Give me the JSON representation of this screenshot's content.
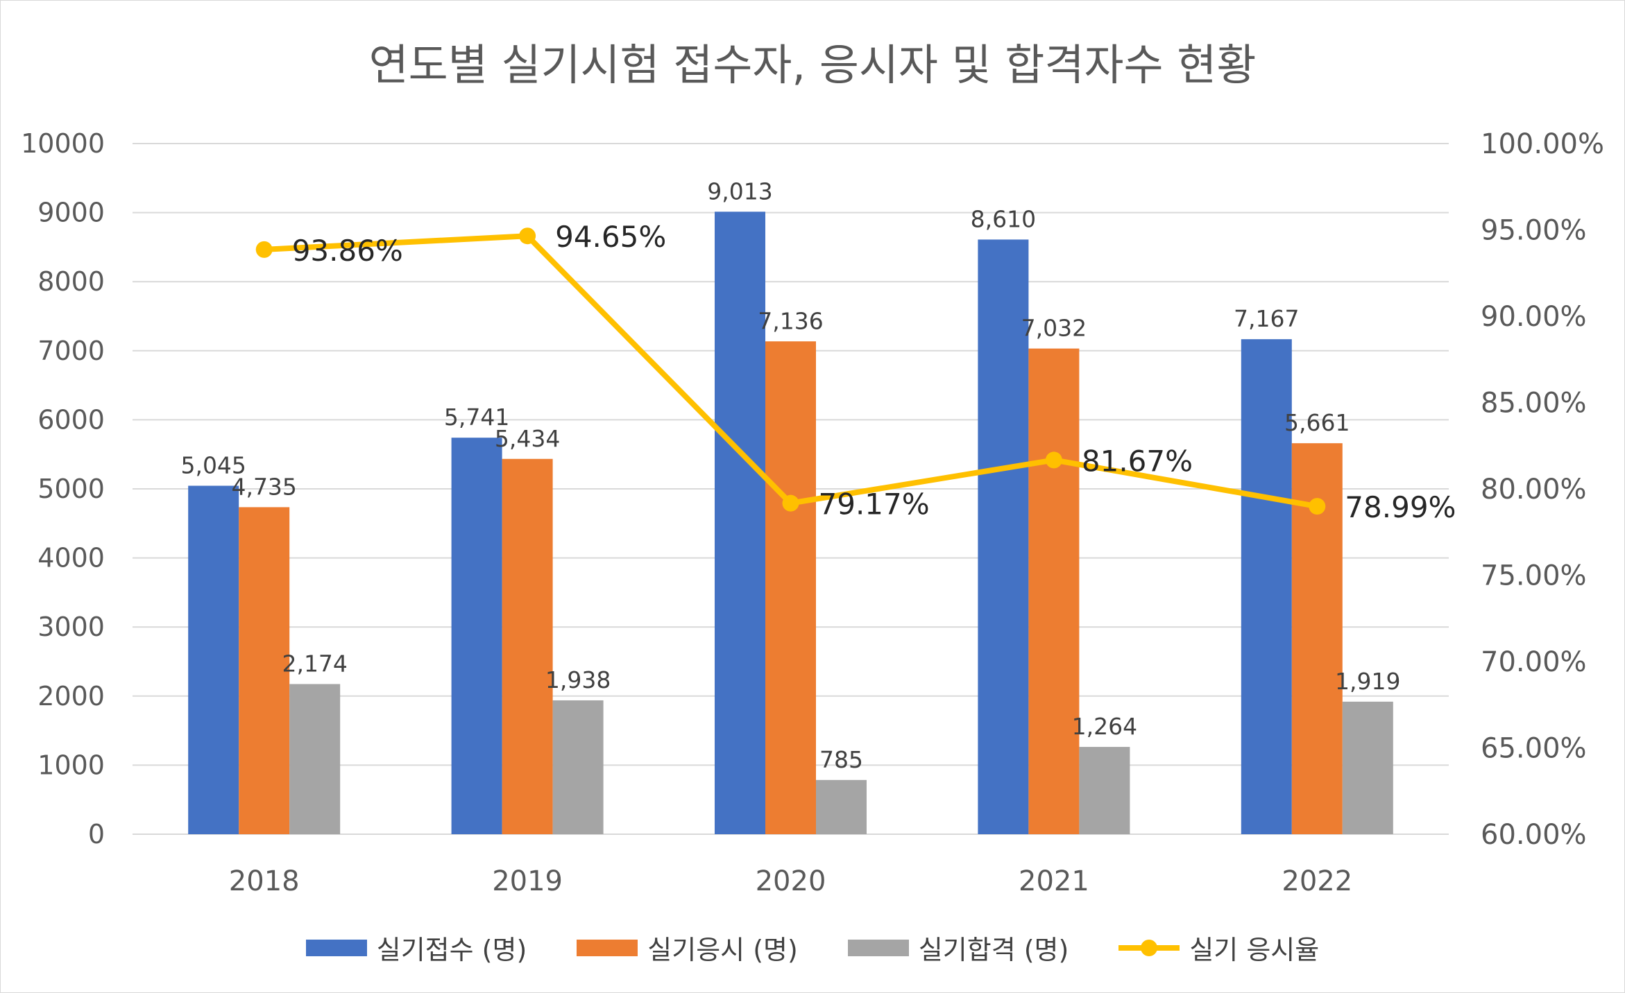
{
  "chart_data": {
    "type": "bar",
    "title": "연도별 실기시험 접수자, 응시자 및 합격자수 현황",
    "categories": [
      "2018",
      "2019",
      "2020",
      "2021",
      "2022"
    ],
    "series": [
      {
        "name": "실기접수 (명)",
        "type": "bar",
        "axis": "left",
        "color": "#4472C4",
        "values": [
          5045,
          5741,
          9013,
          8610,
          7167
        ],
        "labels": [
          "5,045",
          "5,741",
          "9,013",
          "8,610",
          "7,167"
        ]
      },
      {
        "name": "실기응시 (명)",
        "type": "bar",
        "axis": "left",
        "color": "#ED7D31",
        "values": [
          4735,
          5434,
          7136,
          7032,
          5661
        ],
        "labels": [
          "4,735",
          "5,434",
          "7,136",
          "7,032",
          "5,661"
        ]
      },
      {
        "name": "실기합격 (명)",
        "type": "bar",
        "axis": "left",
        "color": "#A5A5A5",
        "values": [
          2174,
          1938,
          785,
          1264,
          1919
        ],
        "labels": [
          "2,174",
          "1,938",
          "785",
          "1,264",
          "1,919"
        ]
      },
      {
        "name": "실기 응시율",
        "type": "line",
        "axis": "right",
        "color": "#FFC000",
        "values": [
          93.86,
          94.65,
          79.17,
          81.67,
          78.99
        ],
        "labels": [
          "93.86%",
          "94.65%",
          "79.17%",
          "81.67%",
          "78.99%"
        ]
      }
    ],
    "y_left": {
      "min": 0,
      "max": 10000,
      "step": 1000,
      "ticks": [
        "0",
        "1000",
        "2000",
        "3000",
        "4000",
        "5000",
        "6000",
        "7000",
        "8000",
        "9000",
        "10000"
      ]
    },
    "y_right": {
      "min": 60,
      "max": 100,
      "step": 5,
      "ticks": [
        "60.00%",
        "65.00%",
        "70.00%",
        "75.00%",
        "80.00%",
        "85.00%",
        "90.00%",
        "95.00%",
        "100.00%"
      ]
    },
    "grid": true,
    "legend_position": "bottom"
  }
}
